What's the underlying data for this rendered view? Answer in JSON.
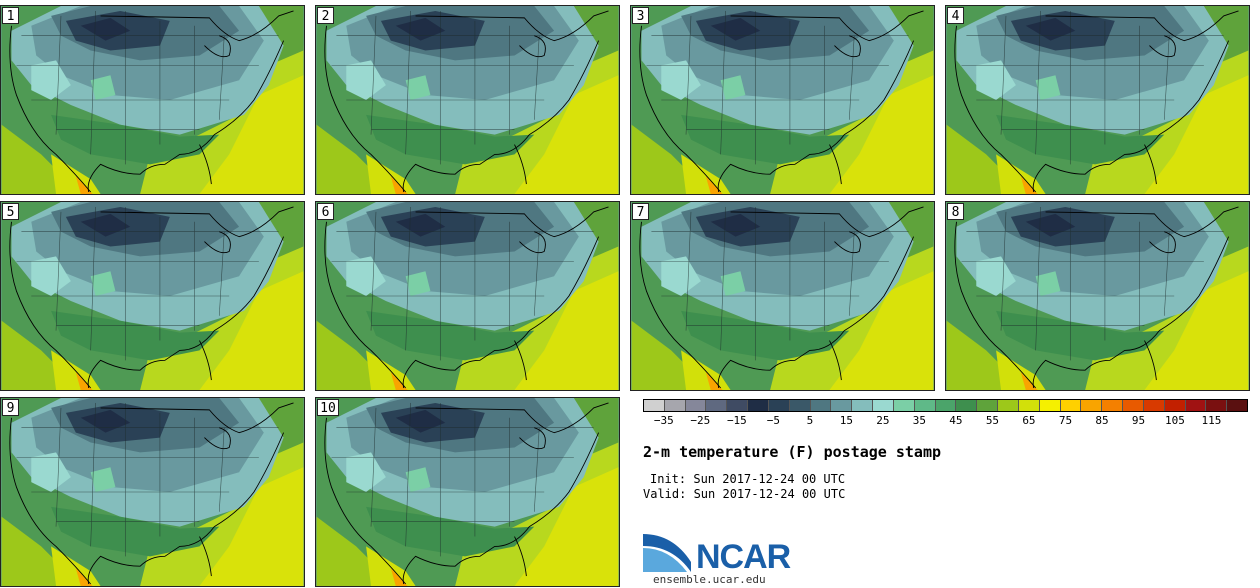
{
  "panels": [
    {
      "label": "1"
    },
    {
      "label": "2"
    },
    {
      "label": "3"
    },
    {
      "label": "4"
    },
    {
      "label": "5"
    },
    {
      "label": "6"
    },
    {
      "label": "7"
    },
    {
      "label": "8"
    },
    {
      "label": "9"
    },
    {
      "label": "10"
    }
  ],
  "colorbar": {
    "colors": [
      "#d0d0d0",
      "#a6a6ad",
      "#85879a",
      "#5f6980",
      "#3f4b63",
      "#1f2d45",
      "#2a4156",
      "#3a5868",
      "#4f7781",
      "#69999f",
      "#84bdbc",
      "#9ad9d0",
      "#7bcfa6",
      "#5fb988",
      "#4ba46a",
      "#3e8f4e",
      "#5fa33b",
      "#9dc81a",
      "#d2e00a",
      "#f5f000",
      "#ffd000",
      "#f9a400",
      "#f48000",
      "#e85a00",
      "#d83a00",
      "#c22000",
      "#a01212",
      "#7a1010",
      "#5a1010"
    ],
    "tick_labels": [
      "−35",
      "−25",
      "−15",
      "−5",
      "5",
      "15",
      "25",
      "35",
      "45",
      "55",
      "65",
      "75",
      "85",
      "95",
      "105",
      "115"
    ]
  },
  "title": "2-m temperature (F) postage stamp",
  "init": "Init: Sun 2017-12-24 00 UTC",
  "valid": "Valid: Sun 2017-12-24 00 UTC",
  "logo": {
    "text": "NCAR",
    "brand_color": "#1a5fa8"
  },
  "site": "ensemble.ucar.edu"
}
